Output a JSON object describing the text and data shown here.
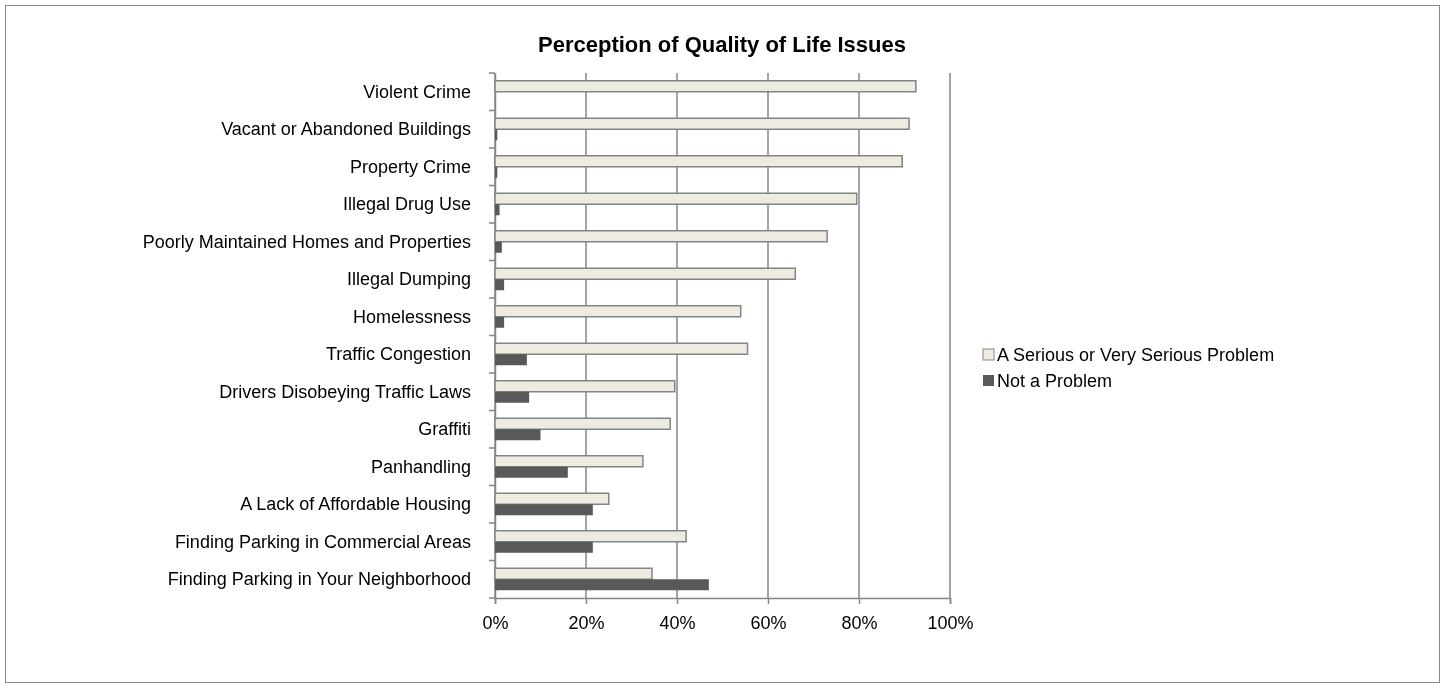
{
  "chart_data": {
    "type": "bar",
    "orientation": "horizontal",
    "title": "Perception of Quality of Life Issues",
    "categories": [
      "Violent Crime",
      "Vacant or Abandoned Buildings",
      "Property Crime",
      "Illegal Drug Use",
      "Poorly Maintained Homes and Properties",
      "Illegal Dumping",
      "Homelessness",
      "Traffic Congestion",
      "Drivers Disobeying Traffic Laws ",
      "Graffiti",
      "Panhandling",
      "A Lack of Affordable Housing",
      "Finding Parking in Commercial Areas",
      "Finding Parking in Your Neighborhood"
    ],
    "series": [
      {
        "name": "A Serious or Very Serious Problem",
        "color": "#eeece1",
        "values": [
          92.5,
          91,
          89.5,
          79.5,
          73,
          66,
          54,
          55.5,
          39.5,
          38.5,
          32.5,
          25,
          42,
          34.5
        ]
      },
      {
        "name": "Not a Problem",
        "color": "#595959",
        "values": [
          0,
          0.5,
          0.5,
          1,
          1.5,
          2,
          2,
          7,
          7.5,
          10,
          16,
          21.5,
          21.5,
          47
        ]
      }
    ],
    "xlim": [
      0,
      100
    ],
    "xticks": [
      {
        "value": 0,
        "label": "0%"
      },
      {
        "value": 20,
        "label": "20%"
      },
      {
        "value": 40,
        "label": "40%"
      },
      {
        "value": 60,
        "label": "60%"
      },
      {
        "value": 80,
        "label": "80%"
      },
      {
        "value": 100,
        "label": "100%"
      }
    ],
    "grid": "x",
    "legend": "right"
  }
}
